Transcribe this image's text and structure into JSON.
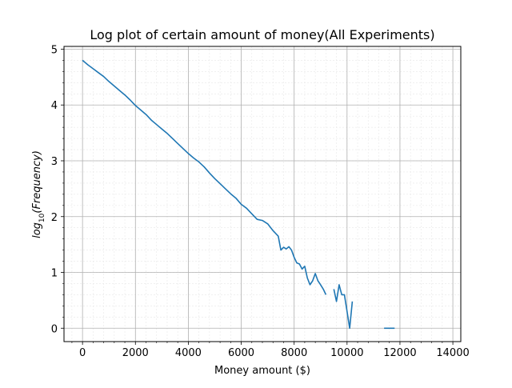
{
  "chart_data": {
    "type": "line",
    "title": "Log plot of certain amount of money(All Experiments)",
    "xlabel": "Money amount ($)",
    "ylabel_prefix": "log",
    "ylabel_sub": "10",
    "ylabel_arg": "(Frequency)",
    "xlim": [
      -700,
      14300
    ],
    "ylim": [
      -0.24,
      5.05
    ],
    "x_ticks": [
      0,
      2000,
      4000,
      6000,
      8000,
      10000,
      12000,
      14000
    ],
    "y_ticks": [
      0,
      1,
      2,
      3,
      4,
      5
    ],
    "x_tick_labels": [
      "0",
      "2000",
      "4000",
      "6000",
      "8000",
      "10000",
      "12000",
      "14000"
    ],
    "y_tick_labels": [
      "0",
      "1",
      "2",
      "3",
      "4",
      "5"
    ],
    "grid": true,
    "line_color": "#1f77b4",
    "series": [
      {
        "segments": [
          [
            [
              0,
              4.8
            ],
            [
              200,
              4.72
            ],
            [
              400,
              4.65
            ],
            [
              600,
              4.58
            ],
            [
              800,
              4.51
            ],
            [
              1000,
              4.42
            ],
            [
              1200,
              4.34
            ],
            [
              1400,
              4.26
            ],
            [
              1600,
              4.18
            ],
            [
              1800,
              4.09
            ],
            [
              2000,
              3.99
            ],
            [
              2200,
              3.91
            ],
            [
              2400,
              3.83
            ],
            [
              2600,
              3.73
            ],
            [
              2800,
              3.65
            ],
            [
              3000,
              3.57
            ],
            [
              3200,
              3.49
            ],
            [
              3400,
              3.4
            ],
            [
              3600,
              3.31
            ],
            [
              3800,
              3.22
            ],
            [
              4000,
              3.13
            ],
            [
              4200,
              3.05
            ],
            [
              4400,
              2.98
            ],
            [
              4600,
              2.89
            ],
            [
              4800,
              2.78
            ],
            [
              5000,
              2.68
            ],
            [
              5200,
              2.59
            ],
            [
              5400,
              2.5
            ],
            [
              5600,
              2.41
            ],
            [
              5800,
              2.33
            ],
            [
              6000,
              2.22
            ],
            [
              6200,
              2.15
            ],
            [
              6400,
              2.05
            ],
            [
              6600,
              1.95
            ],
            [
              6800,
              1.93
            ],
            [
              7000,
              1.87
            ],
            [
              7200,
              1.75
            ],
            [
              7400,
              1.65
            ],
            [
              7500,
              1.4
            ],
            [
              7600,
              1.45
            ],
            [
              7700,
              1.42
            ],
            [
              7800,
              1.46
            ],
            [
              7900,
              1.4
            ],
            [
              8000,
              1.27
            ],
            [
              8100,
              1.17
            ],
            [
              8200,
              1.15
            ],
            [
              8300,
              1.06
            ],
            [
              8400,
              1.11
            ],
            [
              8500,
              0.9
            ],
            [
              8600,
              0.78
            ],
            [
              8700,
              0.85
            ],
            [
              8800,
              0.98
            ],
            [
              8900,
              0.85
            ],
            [
              9000,
              0.78
            ],
            [
              9100,
              0.7
            ],
            [
              9200,
              0.6
            ]
          ],
          [
            [
              9500,
              0.7
            ],
            [
              9600,
              0.48
            ],
            [
              9700,
              0.78
            ],
            [
              9800,
              0.6
            ],
            [
              9900,
              0.6
            ],
            [
              10000,
              0.3
            ],
            [
              10100,
              0.0
            ],
            [
              10200,
              0.48
            ]
          ],
          [
            [
              11400,
              0.0
            ],
            [
              11800,
              0.0
            ]
          ]
        ]
      }
    ]
  }
}
